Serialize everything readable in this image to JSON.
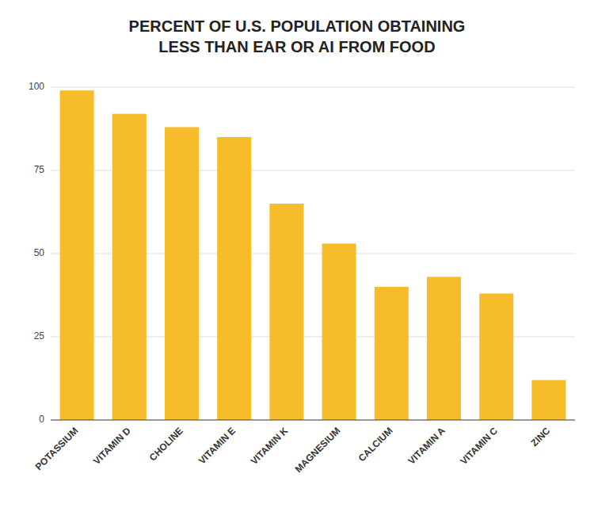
{
  "chart_data": {
    "type": "bar",
    "title": "PERCENT OF U.S. POPULATION OBTAINING\nLESS THAN EAR OR AI FROM FOOD",
    "categories": [
      "POTASSIUM",
      "VITAMIN D",
      "CHOLINE",
      "VITAMIN E",
      "VITAMIN K",
      "MAGNESIUM",
      "CALCIUM",
      "VITAMIN A",
      "VITAMIN C",
      "ZINC"
    ],
    "values": [
      99,
      92,
      88,
      85,
      65,
      53,
      40,
      43,
      38,
      12
    ],
    "color": "#F7BC2A",
    "ylim": [
      0,
      100
    ],
    "yticks": [
      0,
      25,
      50,
      75,
      100
    ],
    "grid": true
  }
}
